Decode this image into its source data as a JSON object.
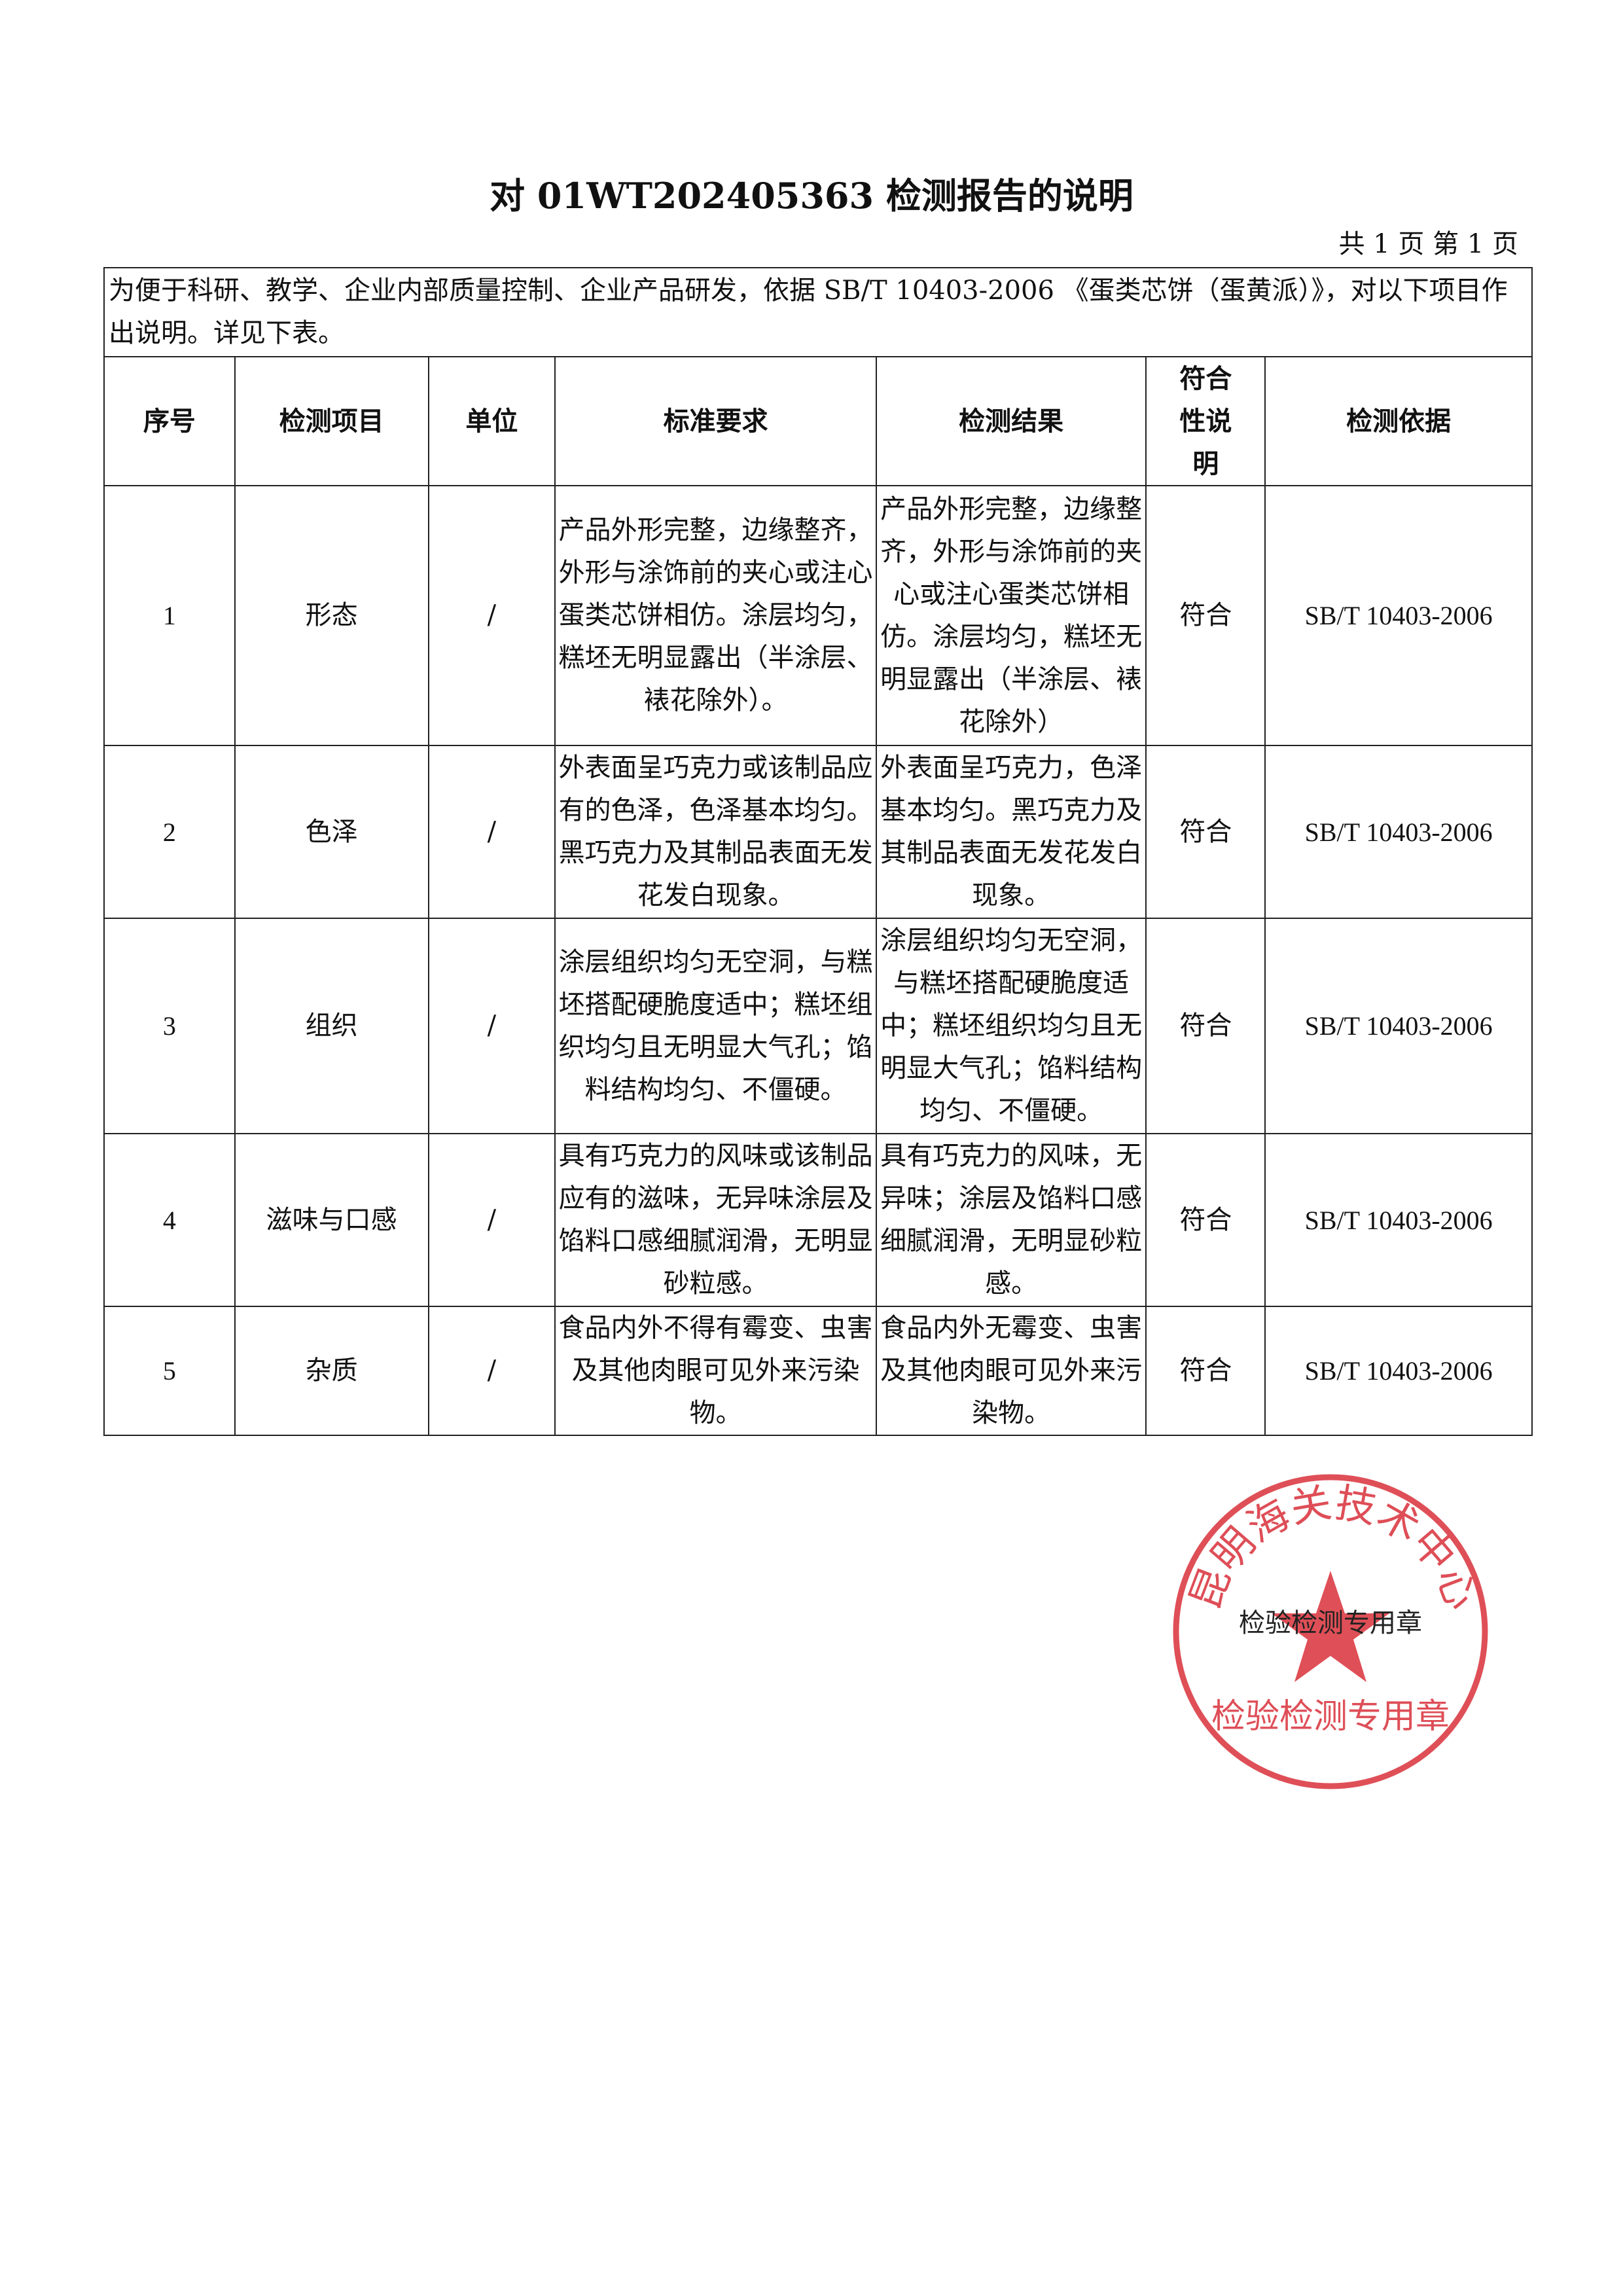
{
  "title": "对 01WT202405363 检测报告的说明",
  "page_info": "共 1 页  第 1 页",
  "intro": "为便于科研、教学、企业内部质量控制、企业产品研发，依据 SB/T 10403-2006 《蛋类芯饼（蛋黄派）》，对以下项目作出说明。详见下表。",
  "headers": [
    "序号",
    "检测项目",
    "单位",
    "标准要求",
    "检测结果",
    "符合性说明",
    "检测依据"
  ],
  "rows": [
    {
      "no": "1",
      "item": "形态",
      "unit": "/",
      "requirement": "产品外形完整，边缘整齐，外形与涂饰前的夹心或注心蛋类芯饼相仿。涂层均匀，糕坯无明显露出（半涂层、裱花除外）。",
      "result": "产品外形完整，边缘整齐，外形与涂饰前的夹心或注心蛋类芯饼相仿。涂层均匀，糕坯无明显露出（半涂层、裱花除外）",
      "conformity": "符合",
      "basis": "SB/T 10403-2006"
    },
    {
      "no": "2",
      "item": "色泽",
      "unit": "/",
      "requirement": "外表面呈巧克力或该制品应有的色泽，色泽基本均匀。黑巧克力及其制品表面无发花发白现象。",
      "result": "外表面呈巧克力，色泽基本均匀。黑巧克力及其制品表面无发花发白现象。",
      "conformity": "符合",
      "basis": "SB/T 10403-2006"
    },
    {
      "no": "3",
      "item": "组织",
      "unit": "/",
      "requirement": "涂层组织均匀无空洞，与糕坯搭配硬脆度适中；糕坯组织均匀且无明显大气孔；馅料结构均匀、不僵硬。",
      "result": "涂层组织均匀无空洞，与糕坯搭配硬脆度适中；糕坯组织均匀且无明显大气孔；馅料结构均匀、不僵硬。",
      "conformity": "符合",
      "basis": "SB/T 10403-2006"
    },
    {
      "no": "4",
      "item": "滋味与口感",
      "unit": "/",
      "requirement": "具有巧克力的风味或该制品应有的滋味，无异味涂层及馅料口感细腻润滑，无明显砂粒感。",
      "result": "具有巧克力的风味，无异味；涂层及馅料口感细腻润滑，无明显砂粒感。",
      "conformity": "符合",
      "basis": "SB/T 10403-2006"
    },
    {
      "no": "5",
      "item": "杂质",
      "unit": "/",
      "requirement": "食品内外不得有霉变、虫害及其他肉眼可见外来污染物。",
      "result": "食品内外无霉变、虫害及其他肉眼可见外来污染物。",
      "conformity": "符合",
      "basis": "SB/T 10403-2006"
    }
  ],
  "stamp": {
    "org": "昆明海关技术中心",
    "label": "检验检测专用章",
    "overlay_text": "检验检测专用章",
    "color": "#d9303a"
  }
}
